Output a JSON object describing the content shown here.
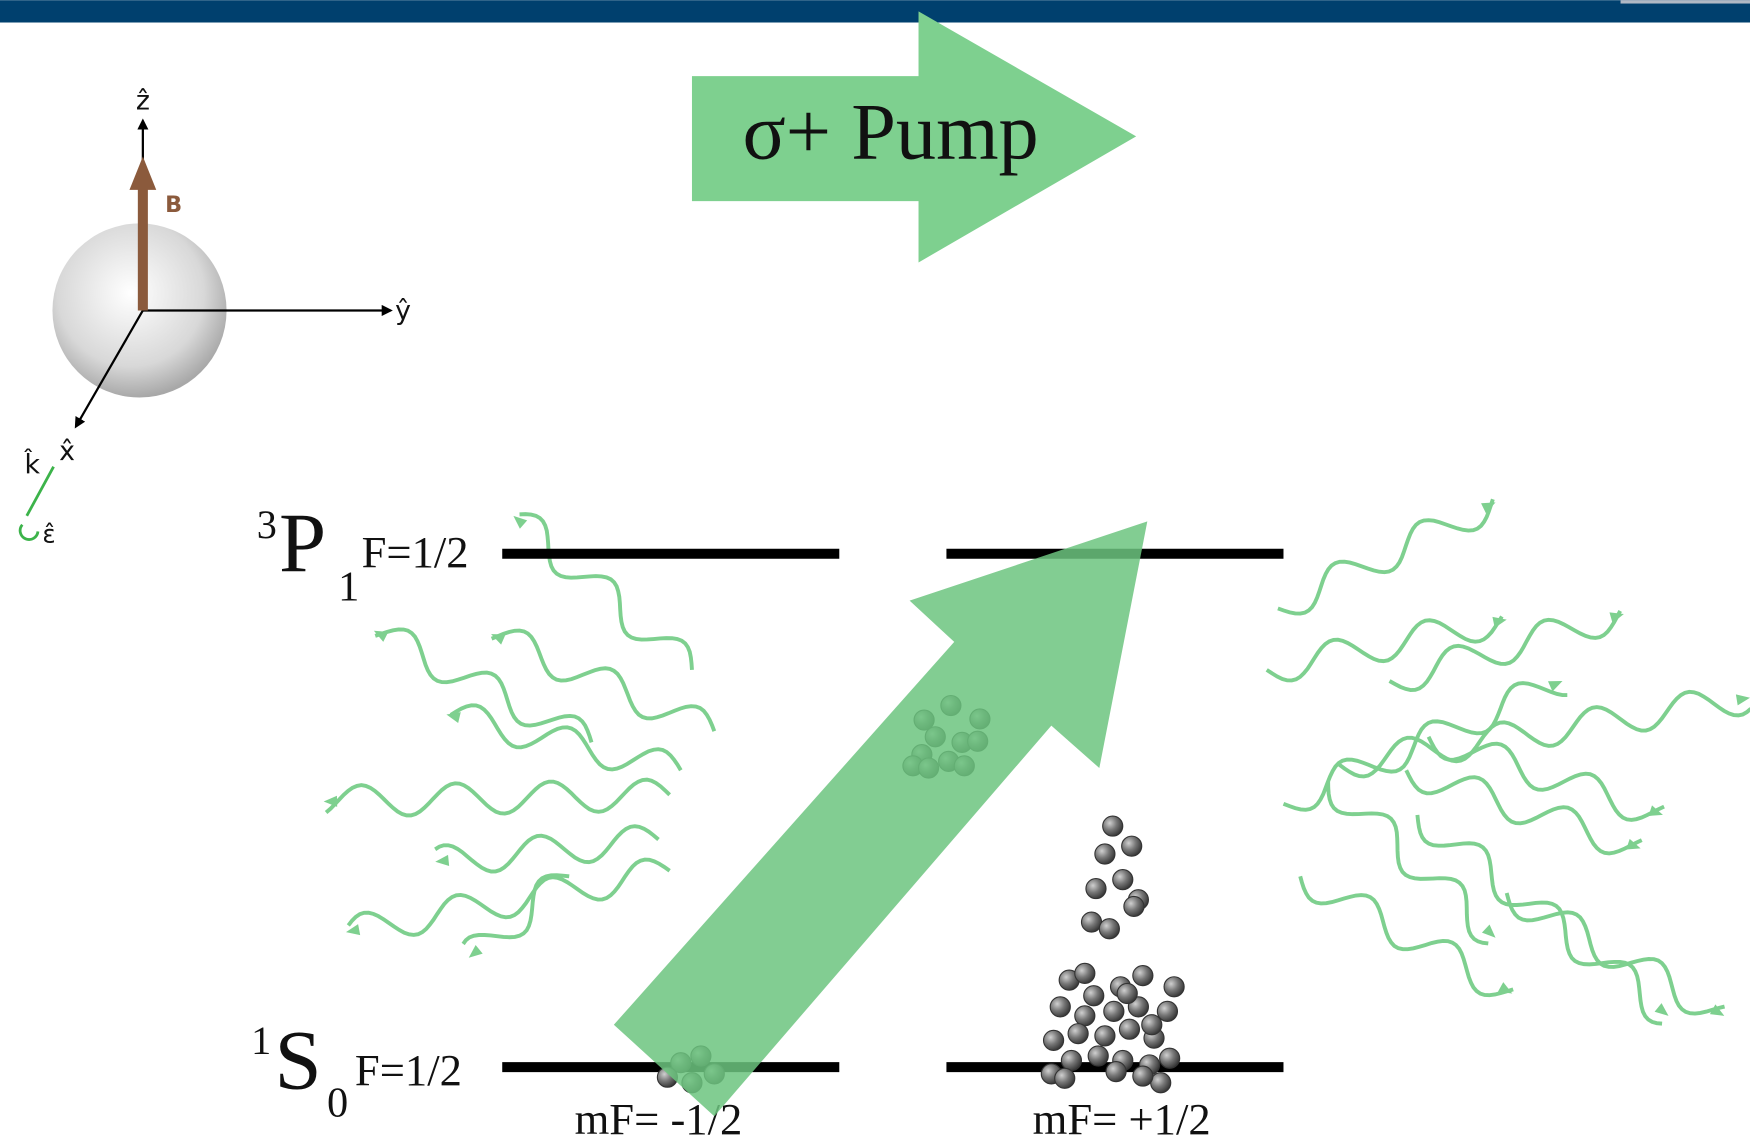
{
  "pump_label": "σ+ Pump",
  "axes": {
    "z": "ẑ",
    "y": "ŷ",
    "x": "x̂",
    "k": "k̂",
    "epsilon": "ε̂",
    "field": "B"
  },
  "levels": [
    {
      "superscript": "3",
      "symbol": "P",
      "subscript": "1",
      "label": "F=1/2"
    },
    {
      "superscript": "1",
      "symbol": "S",
      "subscript": "0",
      "label": "F=1/2"
    }
  ],
  "sublevels": [
    "mF= -1/2",
    "mF= +1/2"
  ]
}
